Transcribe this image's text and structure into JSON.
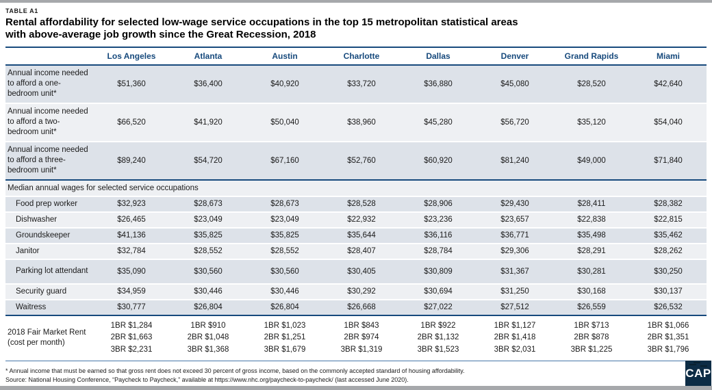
{
  "page": {
    "table_label": "TABLE A1",
    "title_line1": "Rental affordability for selected low-wage service occupations in the top 15 metropolitan statistical areas",
    "title_line2": "with above-average job growth since the Great Recession, 2018",
    "footnote": "* Annual income that must be earned so that gross rent does not exceed 30 percent of gross income, based on the commonly accepted standard of housing affordability.",
    "source": "Source: National Housing Conference, “Paycheck to Paycheck,” available at https://www.nhc.org/paycheck-to-paycheck/ (last accessed June 2020).",
    "logo_text": "CAP"
  },
  "colors": {
    "navy": "#16497c",
    "row_dark": "#dde2e9",
    "row_light": "#eef0f3",
    "bar_gray": "#a6a8ab",
    "logo_navy": "#0d2c45"
  },
  "chart_data": {
    "type": "table",
    "title": "Rental affordability for selected low-wage service occupations in the top 15 metropolitan statistical areas with above-average job growth since the Great Recession, 2018",
    "columns": [
      "Los Angeles",
      "Atlanta",
      "Austin",
      "Charlotte",
      "Dallas",
      "Denver",
      "Grand Rapids",
      "Miami"
    ],
    "income_rows": [
      {
        "label": "Annual income needed to afford a one-bedroom unit*",
        "values": [
          "$51,360",
          "$36,400",
          "$40,920",
          "$33,720",
          "$36,880",
          "$45,080",
          "$28,520",
          "$42,640"
        ]
      },
      {
        "label": "Annual income needed to afford a two-bedroom unit*",
        "values": [
          "$66,520",
          "$41,920",
          "$50,040",
          "$38,960",
          "$45,280",
          "$56,720",
          "$35,120",
          "$54,040"
        ]
      },
      {
        "label": "Annual income needed to afford a three-bedroom unit*",
        "values": [
          "$89,240",
          "$54,720",
          "$67,160",
          "$52,760",
          "$60,920",
          "$81,240",
          "$49,000",
          "$71,840"
        ]
      }
    ],
    "section_header": "Median annual wages for selected service occupations",
    "occupation_rows": [
      {
        "label": "Food prep worker",
        "values": [
          "$32,923",
          "$28,673",
          "$28,673",
          "$28,528",
          "$28,906",
          "$29,430",
          "$28,411",
          "$28,382"
        ]
      },
      {
        "label": "Dishwasher",
        "values": [
          "$26,465",
          "$23,049",
          "$23,049",
          "$22,932",
          "$23,236",
          "$23,657",
          "$22,838",
          "$22,815"
        ]
      },
      {
        "label": "Groundskeeper",
        "values": [
          "$41,136",
          "$35,825",
          "$35,825",
          "$35,644",
          "$36,116",
          "$36,771",
          "$35,498",
          "$35,462"
        ]
      },
      {
        "label": "Janitor",
        "values": [
          "$32,784",
          "$28,552",
          "$28,552",
          "$28,407",
          "$28,784",
          "$29,306",
          "$28,291",
          "$28,262"
        ]
      },
      {
        "label": "Parking lot attendant",
        "values": [
          "$35,090",
          "$30,560",
          "$30,560",
          "$30,405",
          "$30,809",
          "$31,367",
          "$30,281",
          "$30,250"
        ]
      },
      {
        "label": "Security guard",
        "values": [
          "$34,959",
          "$30,446",
          "$30,446",
          "$30,292",
          "$30,694",
          "$31,250",
          "$30,168",
          "$30,137"
        ]
      },
      {
        "label": "Waitress",
        "values": [
          "$30,777",
          "$26,804",
          "$26,804",
          "$26,668",
          "$27,022",
          "$27,512",
          "$26,559",
          "$26,532"
        ]
      }
    ],
    "fair_market_rent": {
      "label": "2018 Fair Market Rent (cost per month)",
      "cells": [
        [
          "1BR $1,284",
          "2BR $1,663",
          "3BR $2,231"
        ],
        [
          "1BR $910",
          "2BR $1,048",
          "3BR $1,368"
        ],
        [
          "1BR $1,023",
          "2BR $1,251",
          "3BR $1,679"
        ],
        [
          "1BR $843",
          "2BR $974",
          "3BR $1,319"
        ],
        [
          "1BR $922",
          "2BR $1,132",
          "3BR $1,523"
        ],
        [
          "1BR $1,127",
          "2BR $1,418",
          "3BR $2,031"
        ],
        [
          "1BR $713",
          "2BR $878",
          "3BR $1,225"
        ],
        [
          "1BR $1,066",
          "2BR $1,351",
          "3BR $1,796"
        ]
      ]
    }
  }
}
